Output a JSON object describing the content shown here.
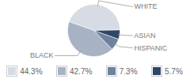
{
  "chart_data": {
    "type": "pie",
    "categories": [
      "WHITE",
      "BLACK",
      "HISPANIC",
      "ASIAN"
    ],
    "values": [
      44.3,
      42.7,
      7.3,
      5.7
    ],
    "value_labels": [
      "44.3%",
      "42.7%",
      "7.3%",
      "5.7%"
    ],
    "colors": [
      "#d6dbe4",
      "#a7b2c4",
      "#6e819d",
      "#2e4668"
    ],
    "data_labels": true,
    "legend": "bottom"
  }
}
